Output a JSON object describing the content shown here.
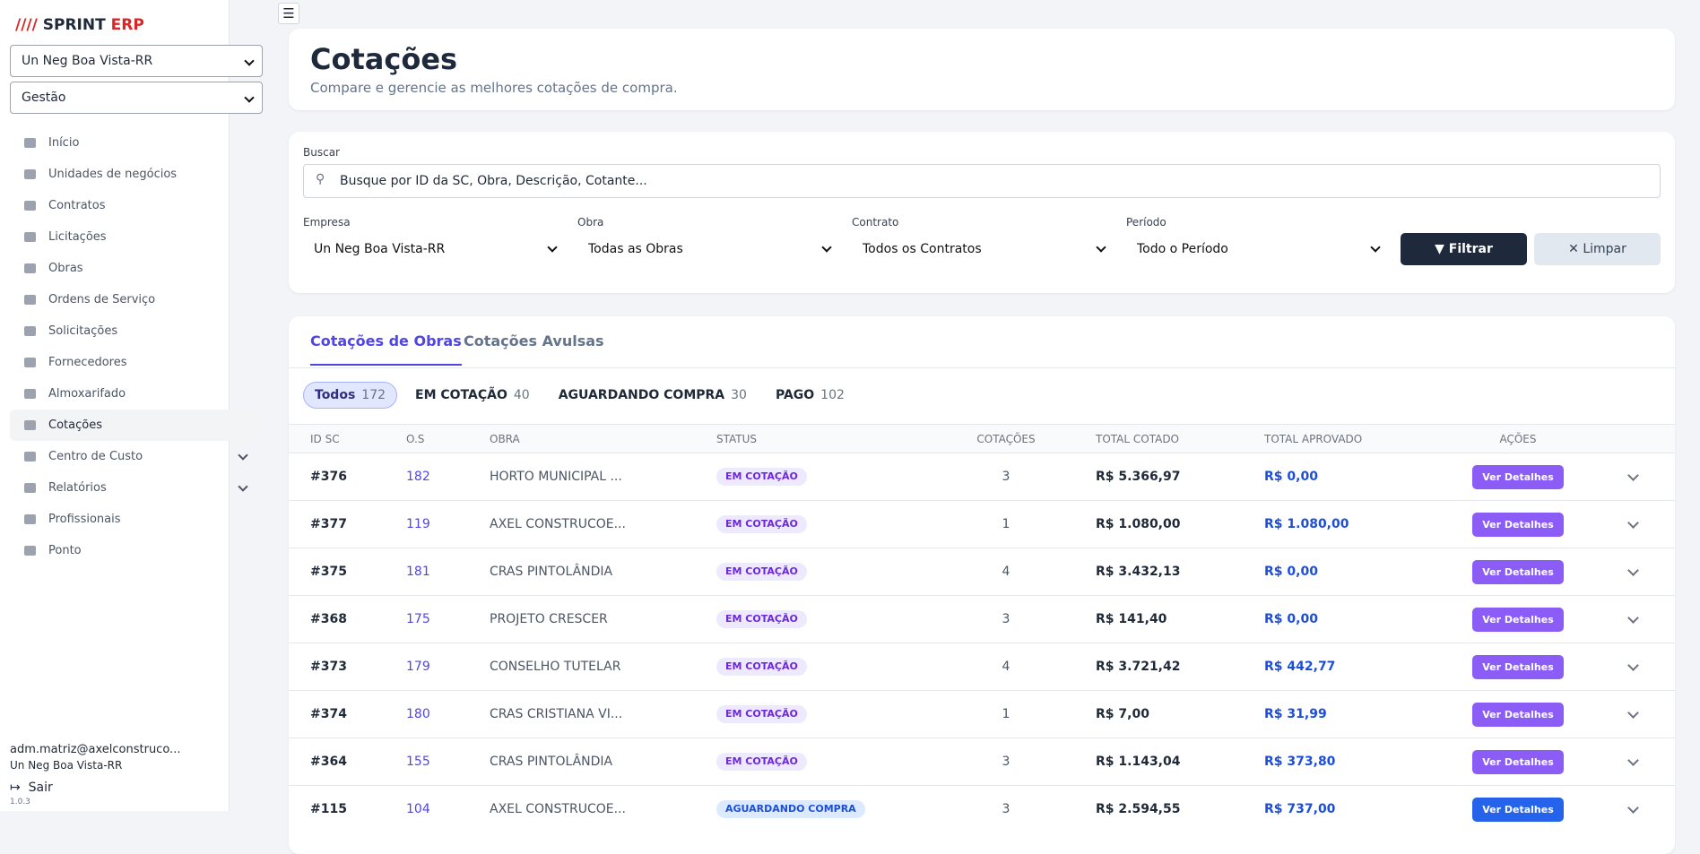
{
  "brand": {
    "part1": "SPRINT",
    "part2": "ERP"
  },
  "sidebar": {
    "selects": [
      "Un Neg Boa Vista-RR",
      "Gestão"
    ],
    "menu": [
      "Início",
      "Unidades de negócios",
      "Contratos",
      "Licitações",
      "Obras",
      "Ordens de Serviço",
      "Solicitações",
      "Fornecedores",
      "Almoxarifado",
      "Cotações",
      "Centro de Custo",
      "Relatórios",
      "Profissionais",
      "Ponto"
    ],
    "user": {
      "email": "adm.matriz@axelconstruco...",
      "unit": "Un Neg Boa Vista-RR",
      "logout": "Sair",
      "version": "1.0.3"
    }
  },
  "header": {
    "title": "Cotações",
    "subtitle": "Compare e gerencie as melhores cotações de compra."
  },
  "filters": {
    "search_label": "Buscar",
    "search_placeholder": "Busque por ID da SC, Obra, Descrição, Cotante...",
    "fields": [
      {
        "label": "Empresa",
        "value": "Un Neg Boa Vista-RR"
      },
      {
        "label": "Obra",
        "value": "Todas as Obras"
      },
      {
        "label": "Contrato",
        "value": "Todos os Contratos"
      },
      {
        "label": "Período",
        "value": "Todo o Período"
      }
    ],
    "filter_button": "Filtrar",
    "clear_button": "Limpar"
  },
  "tabs": [
    "Cotações de Obras",
    "Cotações Avulsas"
  ],
  "status_filters": [
    {
      "label": "Todos",
      "count": 172
    },
    {
      "label": "EM COTAÇÃO",
      "count": 40
    },
    {
      "label": "AGUARDANDO COMPRA",
      "count": 30
    },
    {
      "label": "PAGO",
      "count": 102
    }
  ],
  "table": {
    "columns": [
      "ID SC",
      "O.S",
      "OBRA",
      "STATUS",
      "COTAÇÕES",
      "TOTAL COTADO",
      "TOTAL APROVADO",
      "AÇÕES"
    ],
    "action_label": "Ver Detalhes",
    "rows": [
      [
        "#376",
        182,
        "HORTO MUNICIPAL ...",
        "EM COTAÇÃO",
        3,
        "R$ 5.366,97",
        "R$ 0,00"
      ],
      [
        "#377",
        119,
        "AXEL CONSTRUCOE...",
        "EM COTAÇÃO",
        1,
        "R$ 1.080,00",
        "R$ 1.080,00"
      ],
      [
        "#375",
        181,
        "CRAS PINTOLÂNDIA",
        "EM COTAÇÃO",
        4,
        "R$ 3.432,13",
        "R$ 0,00"
      ],
      [
        "#368",
        175,
        "PROJETO CRESCER",
        "EM COTAÇÃO",
        3,
        "R$ 141,40",
        "R$ 0,00"
      ],
      [
        "#373",
        179,
        "CONSELHO TUTELAR",
        "EM COTAÇÃO",
        4,
        "R$ 3.721,42",
        "R$ 442,77"
      ],
      [
        "#374",
        180,
        "CRAS CRISTIANA VI...",
        "EM COTAÇÃO",
        1,
        "R$ 7,00",
        "R$ 31,99"
      ],
      [
        "#364",
        155,
        "CRAS PINTOLÂNDIA",
        "EM COTAÇÃO",
        3,
        "R$ 1.143,04",
        "R$ 373,80"
      ],
      [
        "#115",
        104,
        "AXEL CONSTRUCOE...",
        "AGUARDANDO COMPRA",
        3,
        "R$ 2.594,55",
        "R$ 737,00"
      ]
    ]
  }
}
